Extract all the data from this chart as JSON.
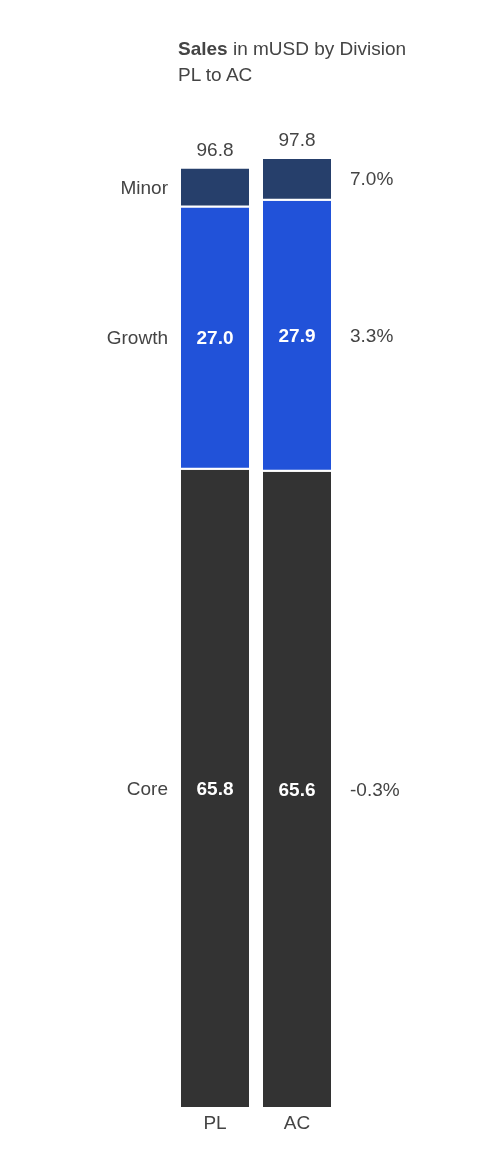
{
  "chart_data": {
    "type": "bar",
    "title": "Sales in mUSD by Division",
    "subtitle": "PL to AC",
    "stacked": true,
    "categories": [
      "PL",
      "AC"
    ],
    "series": [
      {
        "name": "Core",
        "color": "#333333",
        "values": [
          65.8,
          65.6
        ],
        "value_labels": [
          "65.8",
          "65.6"
        ]
      },
      {
        "name": "Growth",
        "color": "#2152d9",
        "values": [
          27.0,
          27.9
        ],
        "value_labels": [
          "27.0",
          "27.9"
        ]
      },
      {
        "name": "Minor",
        "color": "#263f6b",
        "values": [
          4.0,
          4.3
        ],
        "value_labels": [
          null,
          null
        ]
      }
    ],
    "totals": [
      "96.8",
      "97.8"
    ],
    "annotations": [
      "-0.3%",
      "3.3%",
      "7.0%"
    ],
    "grid": false
  }
}
